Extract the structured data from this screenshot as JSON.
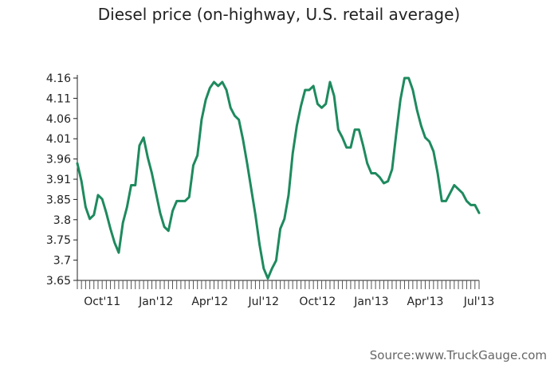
{
  "chart_data": {
    "type": "line",
    "title": "Diesel price (on-highway, U.S. retail average)",
    "xlabel": "",
    "ylabel": "",
    "ylim": [
      3.65,
      4.16
    ],
    "yticks": [
      "3.65",
      "3.7",
      "3.75",
      "3.8",
      "3.85",
      "3.91",
      "3.96",
      "4.01",
      "4.06",
      "4.11",
      "4.16"
    ],
    "xtick_labels": [
      "Oct'11",
      "Jan'12",
      "Apr'12",
      "Jul'12",
      "Oct'12",
      "Jan'13",
      "Apr'13",
      "Jul'13"
    ],
    "xtick_positions": [
      6,
      19,
      32,
      45,
      58,
      71,
      84,
      97
    ],
    "line_color": "#1e8a5e",
    "grid": false,
    "series": [
      {
        "values": [
          3.945,
          3.9,
          3.835,
          3.805,
          3.815,
          3.865,
          3.855,
          3.82,
          3.78,
          3.745,
          3.72,
          3.795,
          3.835,
          3.89,
          3.89,
          3.99,
          4.01,
          3.96,
          3.92,
          3.87,
          3.82,
          3.785,
          3.775,
          3.825,
          3.85,
          3.85,
          3.85,
          3.86,
          3.94,
          3.965,
          4.055,
          4.105,
          4.135,
          4.15,
          4.14,
          4.15,
          4.13,
          4.085,
          4.065,
          4.055,
          4.005,
          3.945,
          3.88,
          3.815,
          3.74,
          3.68,
          3.655,
          3.68,
          3.7,
          3.78,
          3.805,
          3.865,
          3.97,
          4.04,
          4.09,
          4.13,
          4.13,
          4.14,
          4.095,
          4.085,
          4.095,
          4.15,
          4.115,
          4.03,
          4.01,
          3.985,
          3.985,
          4.03,
          4.03,
          3.99,
          3.945,
          3.92,
          3.92,
          3.91,
          3.895,
          3.9,
          3.93,
          4.02,
          4.105,
          4.16,
          4.16,
          4.13,
          4.08,
          4.04,
          4.01,
          4.0,
          3.975,
          3.92,
          3.85,
          3.85,
          3.87,
          3.89,
          3.88,
          3.87,
          3.85,
          3.84,
          3.84,
          3.82
        ]
      }
    ]
  },
  "source": "Source:www.TruckGauge.com"
}
